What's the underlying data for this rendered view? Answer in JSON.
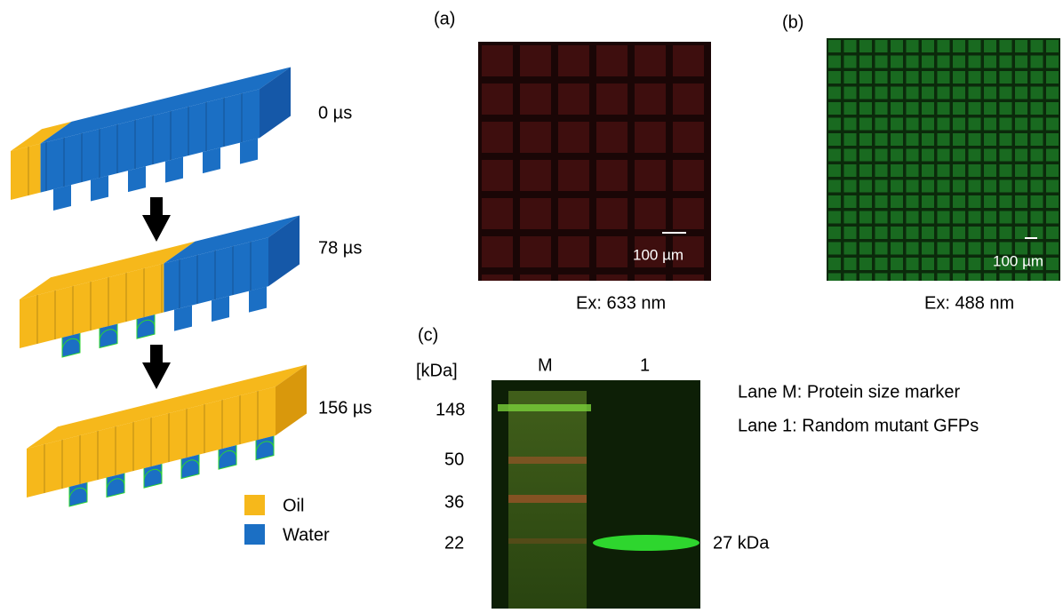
{
  "simulation": {
    "times": [
      "0 µs",
      "78 µs",
      "156 µs"
    ],
    "legend": [
      "Oil",
      "Water"
    ]
  },
  "panel_a": {
    "label": "(a)",
    "scale_bar": "100 µm",
    "caption": "Ex: 633 nm"
  },
  "panel_b": {
    "label": "(b)",
    "scale_bar": "100 µm",
    "caption": "Ex: 488 nm"
  },
  "panel_c": {
    "label": "(c)",
    "unit": "[kDa]",
    "lanes": [
      "M",
      "1"
    ],
    "markers": [
      "148",
      "50",
      "36",
      "22"
    ],
    "band_label": "27 kDa",
    "notes": [
      "Lane M: Protein size marker",
      "Lane 1: Random mutant GFPs"
    ]
  }
}
